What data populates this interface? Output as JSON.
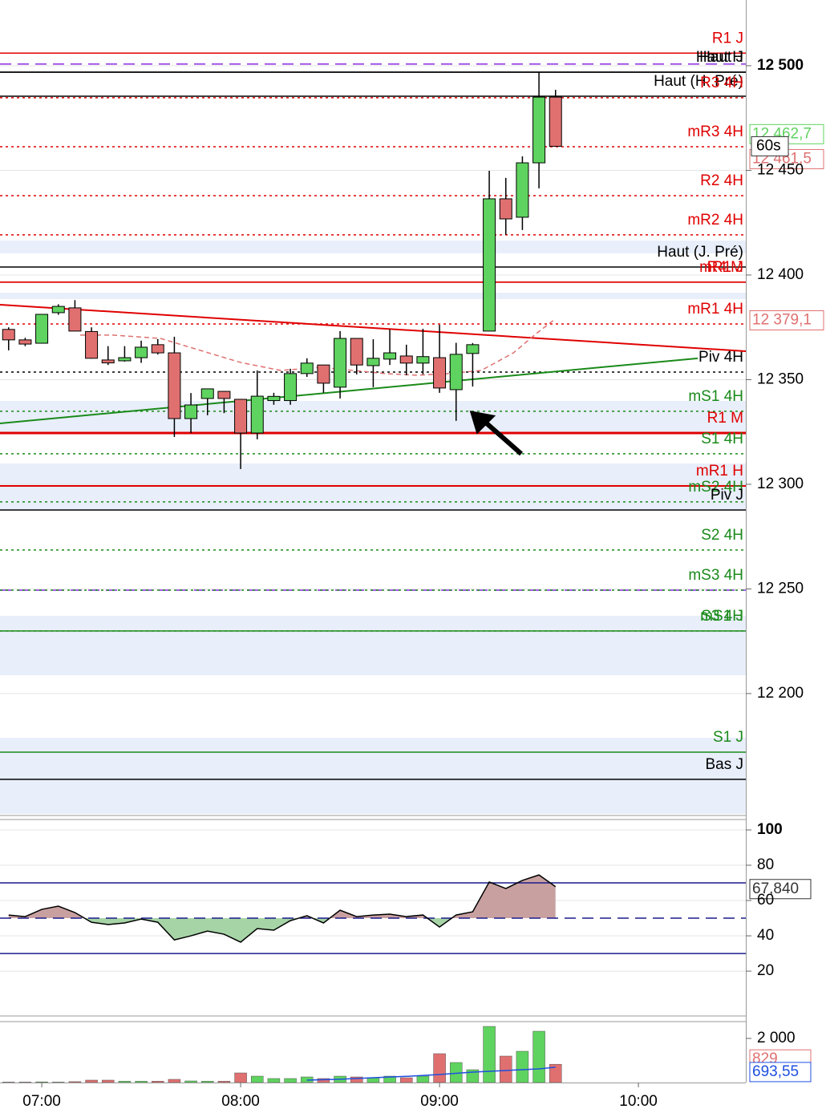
{
  "chart_data": [
    {
      "type": "candlestick",
      "x": [
        410,
        415,
        420,
        425,
        430,
        435,
        440,
        445,
        450,
        455,
        460,
        465,
        470,
        475,
        480,
        485,
        490,
        495,
        500,
        505,
        510,
        515,
        520,
        525,
        530,
        535,
        540,
        545,
        550,
        555,
        560,
        565,
        570,
        575
      ],
      "open": [
        12374,
        12369,
        12367.4,
        12382,
        12384.3,
        12373,
        12359.4,
        12359,
        12360.5,
        12366.7,
        12362.8,
        12331.4,
        12341,
        12344.4,
        12340.6,
        12324.5,
        12340,
        12340,
        12352.9,
        12357,
        12346.4,
        12369.7,
        12356.7,
        12359.8,
        12361.3,
        12357.9,
        12360.5,
        12345.2,
        12362.5,
        12373.2,
        12436.4,
        12427.6,
        12453.6,
        12485
      ],
      "high": [
        12375,
        12370,
        12381.2,
        12386,
        12388,
        12375,
        12366,
        12366,
        12368.6,
        12369.4,
        12370.5,
        12343.6,
        12345.6,
        12344.5,
        12340.6,
        12354.4,
        12343.7,
        12355.2,
        12360.2,
        12357,
        12373.2,
        12369.7,
        12369.3,
        12374,
        12366.7,
        12374.3,
        12376.2,
        12367.6,
        12367.5,
        12449.8,
        12446.4,
        12456.7,
        12496.9,
        12488.5
      ],
      "low": [
        12364,
        12366,
        12367.4,
        12381,
        12373.2,
        12360,
        12357,
        12358.6,
        12358,
        12362,
        12322.6,
        12324.5,
        12333,
        12334,
        12307.3,
        12321.5,
        12338,
        12338,
        12351.3,
        12343.7,
        12341,
        12352.5,
        12346.4,
        12357,
        12352.1,
        12352.5,
        12343.7,
        12330.3,
        12346.7,
        12373.2,
        12419.2,
        12421.5,
        12441.4,
        12461.5
      ],
      "close": [
        12369,
        12367,
        12381.2,
        12385,
        12373.2,
        12360.2,
        12358,
        12360.5,
        12365.5,
        12362.8,
        12331.4,
        12337.9,
        12345.6,
        12341,
        12324.5,
        12342.1,
        12342,
        12352.9,
        12357.9,
        12348.3,
        12369.7,
        12357,
        12360.2,
        12362.8,
        12357.9,
        12361,
        12346,
        12362.1,
        12366.7,
        12436.4,
        12426.8,
        12453.6,
        12485,
        12461.5
      ],
      "up_color": "#5fd35f",
      "down_color": "#e07070",
      "xlim": [
        407.4,
        632.4
      ],
      "xticks": [
        {
          "value": 420,
          "label": "07:00"
        },
        {
          "value": 480,
          "label": "08:00"
        },
        {
          "value": 540,
          "label": "09:00"
        },
        {
          "value": 600,
          "label": "10:00"
        }
      ],
      "ylim": [
        12142.5,
        12531.4
      ],
      "yticks": [
        {
          "value": 12200,
          "label": "12 200"
        },
        {
          "value": 12250,
          "label": "12 250"
        },
        {
          "value": 12300,
          "label": "12 300"
        },
        {
          "value": 12350,
          "label": "12 350"
        },
        {
          "value": 12400,
          "label": "12 400"
        },
        {
          "value": 12450,
          "label": "12 450"
        },
        {
          "value": 12500,
          "label": "12 500"
        }
      ],
      "grid": true,
      "levels": [
        {
          "label": "R1 J",
          "value": 12506,
          "color": "#e00000",
          "style": "solid"
        },
        {
          "value": 12500.8,
          "color": "#8a2be2",
          "style": "dashed"
        },
        {
          "label": "Haut H",
          "value": 12496.9,
          "color": "#000000",
          "style": "solid"
        },
        {
          "label": "Haut J",
          "value": 12496.9,
          "color": "#000000",
          "style": "solid"
        },
        {
          "label": "Haut (H. Pré)",
          "value": 12485.4,
          "color": "#000000",
          "style": "solid"
        },
        {
          "label": "R3 4H",
          "value": 12484.7,
          "color": "#e00000",
          "style": "dotted"
        },
        {
          "label": "mR3 4H",
          "value": 12461.3,
          "color": "#e00000",
          "style": "dotted"
        },
        {
          "label": "R2 4H",
          "value": 12437.9,
          "color": "#e00000",
          "style": "dotted"
        },
        {
          "label": "mR2 4H",
          "value": 12419.2,
          "color": "#e00000",
          "style": "dotted"
        },
        {
          "label": "Haut (J. Pré)",
          "value": 12403.8,
          "color": "#000000",
          "style": "solid"
        },
        {
          "label": "R4 M",
          "value": 12396.6,
          "color": "#e00000",
          "style": "solid"
        },
        {
          "label": "mR1 J",
          "value": 12396.6,
          "color": "#e00000",
          "style": "solid"
        },
        {
          "label": "mR1 4H",
          "value": 12376.6,
          "color": "#e00000",
          "style": "dotted"
        },
        {
          "label": "Piv 4H",
          "value": 12353.6,
          "color": "#000000",
          "style": "dotted"
        },
        {
          "label": "mS1 4H",
          "value": 12334.9,
          "color": "#1a8a1a",
          "style": "dotted"
        },
        {
          "label": "R1 M",
          "value": 12324.5,
          "color": "#e00000",
          "style": "solid",
          "width": 3
        },
        {
          "label": "S1 4H",
          "value": 12314.6,
          "color": "#1a8a1a",
          "style": "dotted"
        },
        {
          "label": "mR1 H",
          "value": 12299.2,
          "color": "#e00000",
          "style": "solid",
          "width": 2
        },
        {
          "label": "mS2 4H",
          "value": 12291.6,
          "color": "#1a8a1a",
          "style": "dotted"
        },
        {
          "label": "Piv J",
          "value": 12287.7,
          "color": "#000000",
          "style": "solid"
        },
        {
          "label": "S2 4H",
          "value": 12268.6,
          "color": "#1a8a1a",
          "style": "dotted"
        },
        {
          "value": 12249.4,
          "color": "#8a2be2",
          "style": "dashed"
        },
        {
          "label": "mS3 4H",
          "value": 12249.4,
          "color": "#1a8a1a",
          "style": "dotted"
        },
        {
          "label": "S3 4H",
          "value": 12229.9,
          "color": "#1a8a1a",
          "style": "dotted"
        },
        {
          "label": "mS1 J",
          "value": 12229.9,
          "color": "#1a8a1a",
          "style": "solid"
        },
        {
          "label": "S1 J",
          "value": 12172,
          "color": "#1a8a1a",
          "style": "solid"
        },
        {
          "label": "Bas J",
          "value": 12159,
          "color": "#000000",
          "style": "solid"
        }
      ],
      "trendlines": [
        {
          "x": [
            407.4,
            632.4
          ],
          "values": [
            12385.8,
            12363.6
          ],
          "color": "#e00000"
        },
        {
          "x": [
            407.4,
            617.9
          ],
          "values": [
            12329.1,
            12360.2
          ],
          "color": "#1a8a1a"
        }
      ],
      "average": {
        "x": [
          431.6,
          441.3,
          455.8,
          470.3,
          480,
          492.1,
          504.2,
          513.9,
          523.6,
          533.2,
          542.9,
          552.6,
          562.3,
          569.5,
          575
        ],
        "values": [
          12371.3,
          12371.3,
          12369.7,
          12362.8,
          12358.2,
          12354.4,
          12355.9,
          12354.4,
          12352.9,
          12352.1,
          12352.9,
          12354.4,
          12362.8,
          12372.4,
          12379.1
        ],
        "color": "#e07070"
      },
      "price_flags": [
        {
          "value": 12462.7,
          "label": "12 462,7",
          "color": "#5fd35f"
        },
        {
          "value": 12461.5,
          "label": "12 461,5",
          "color": "#e07070"
        },
        {
          "value": 12379.1,
          "label": "12 379,1",
          "color": "#e07070"
        }
      ],
      "timer": "60s"
    },
    {
      "type": "rsi",
      "x": [
        410,
        415,
        420,
        425,
        430,
        435,
        440,
        445,
        450,
        455,
        460,
        465,
        470,
        475,
        480,
        485,
        490,
        495,
        500,
        505,
        510,
        515,
        520,
        525,
        530,
        535,
        540,
        545,
        550,
        555,
        560,
        565,
        570,
        575
      ],
      "values": [
        51.8,
        50.9,
        55,
        56.8,
        53.2,
        47.7,
        46.4,
        47.3,
        49.5,
        47.7,
        37.7,
        40,
        42.7,
        40.9,
        36.4,
        44.1,
        43.2,
        48.6,
        51.4,
        47.3,
        54.5,
        50.9,
        51.8,
        52.3,
        50.9,
        51.8,
        45,
        51.8,
        53.6,
        70.5,
        66.8,
        71.4,
        74.5,
        67.84
      ],
      "color": "#000000",
      "fill_up": "#c9a0a0",
      "fill_down": "#a6d4a6",
      "ylim": [
        -4.5,
        105.9
      ],
      "yticks": [
        20,
        40,
        60,
        80,
        100
      ],
      "grid": true,
      "levels": [
        {
          "value": 70,
          "style": "solid"
        },
        {
          "value": 50,
          "style": "dashed"
        },
        {
          "value": 30,
          "style": "solid"
        }
      ],
      "level_color": "#1c1c8c",
      "flag": {
        "value": 67.84,
        "label": "67,840"
      }
    },
    {
      "type": "volume",
      "x": [
        410,
        415,
        420,
        425,
        430,
        435,
        440,
        445,
        450,
        455,
        460,
        465,
        470,
        475,
        480,
        485,
        490,
        495,
        500,
        505,
        510,
        515,
        520,
        525,
        530,
        535,
        540,
        545,
        550,
        555,
        560,
        565,
        570,
        575
      ],
      "values": [
        20,
        20,
        30,
        20,
        40,
        109,
        109,
        60,
        60,
        60,
        145,
        73,
        60,
        60,
        436,
        290,
        182,
        182,
        254,
        182,
        290,
        254,
        218,
        290,
        218,
        290,
        1309,
        909,
        582,
        2545,
        1200,
        1418,
        2327,
        829
      ],
      "ylim": [
        0,
        2727
      ],
      "yticks": [
        {
          "value": 2000,
          "label": "2 000"
        }
      ],
      "average": {
        "x": [
          500,
          510,
          520,
          530,
          540,
          550,
          560,
          570,
          575
        ],
        "values": [
          109,
          150,
          218,
          280,
          364,
          473,
          545,
          618,
          693.55
        ],
        "color": "#1f4fe0"
      },
      "flags": [
        {
          "value": 829,
          "label": "829",
          "color": "#e07070"
        },
        {
          "value": 693.55,
          "label": "693,55",
          "color": "#1f4fe0"
        }
      ]
    }
  ]
}
